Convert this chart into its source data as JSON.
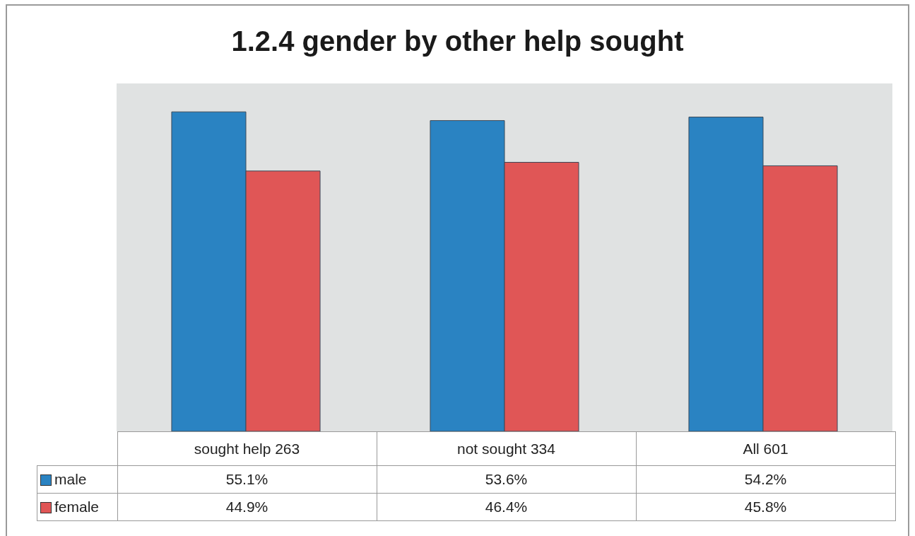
{
  "chart_data": {
    "type": "bar",
    "title": "1.2.4 gender by other help sought",
    "categories": [
      "sought help 263",
      "not sought 334",
      "All 601"
    ],
    "ylim": [
      0,
      60
    ],
    "legend": "bottom left",
    "series": [
      {
        "name": "male",
        "color": "#2a83c2",
        "values": [
          55.1,
          53.6,
          54.2
        ],
        "value_labels": [
          "55.1%",
          "53.6%",
          "54.2%"
        ]
      },
      {
        "name": "female",
        "color": "#e05656",
        "values": [
          44.9,
          46.4,
          45.8
        ],
        "value_labels": [
          "44.9%",
          "46.4%",
          "45.8%"
        ]
      }
    ]
  }
}
